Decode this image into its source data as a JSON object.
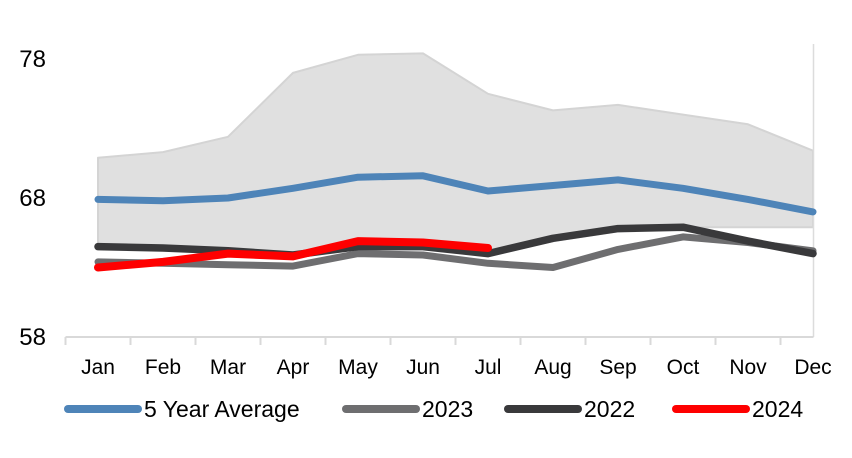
{
  "chart_data": {
    "type": "line",
    "title": "",
    "xlabel": "",
    "ylabel": "",
    "ylim": [
      58,
      79.5
    ],
    "grid": "off",
    "legend_position": "bottom",
    "axis_color": "#d9d9d9",
    "text_color": "#000000",
    "categories": [
      "Jan",
      "Feb",
      "Mar",
      "Apr",
      "May",
      "Jun",
      "Jul",
      "Aug",
      "Sep",
      "Oct",
      "Nov",
      "Dec"
    ],
    "y_ticks": [
      {
        "label": "78",
        "value": 78
      },
      {
        "label": "68",
        "value": 68
      },
      {
        "label": "58",
        "value": 58
      }
    ],
    "band": {
      "name": "5-year-range-band",
      "fill": "#e0e0e0",
      "edge": "#d4d4d4",
      "top": [
        70.9,
        71.3,
        72.4,
        77.0,
        78.3,
        78.4,
        75.5,
        74.3,
        74.7,
        74.0,
        73.3,
        71.4
      ],
      "bottom": [
        64.4,
        64.3,
        64.1,
        63.8,
        64.3,
        64.4,
        63.9,
        64.9,
        65.6,
        65.9,
        65.9,
        65.9
      ]
    },
    "series": [
      {
        "name": "5 Year Average",
        "color": "#4e84b8",
        "width": 7,
        "values": [
          67.9,
          67.8,
          68.0,
          68.7,
          69.5,
          69.6,
          68.5,
          68.9,
          69.3,
          68.7,
          67.9,
          67.0
        ]
      },
      {
        "name": "2023",
        "color": "#6e6e70",
        "width": 7,
        "values": [
          63.4,
          63.3,
          63.2,
          63.1,
          64.0,
          63.9,
          63.3,
          63.0,
          64.3,
          65.2,
          64.8,
          64.2
        ]
      },
      {
        "name": "2022",
        "color": "#39393b",
        "width": 7.5,
        "values": [
          64.5,
          64.4,
          64.2,
          63.9,
          64.5,
          64.5,
          64.0,
          65.1,
          65.8,
          65.9,
          64.9,
          64.0
        ]
      },
      {
        "name": "2024",
        "color": "#fe0000",
        "width": 8,
        "values": [
          63.0,
          63.4,
          64.0,
          63.8,
          64.9,
          64.8,
          64.4
        ]
      }
    ],
    "legend": [
      "5 Year Average",
      "2023",
      "2022",
      "2024"
    ]
  }
}
